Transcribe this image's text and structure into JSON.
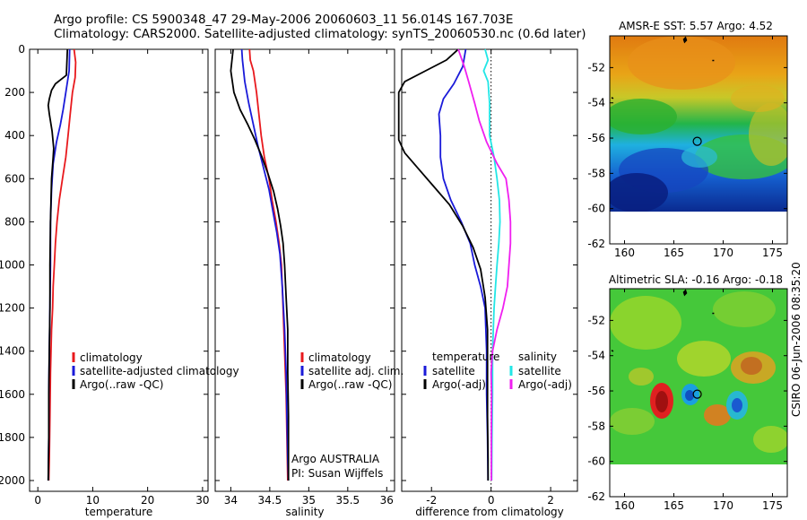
{
  "header": {
    "line1": "Argo profile: CS 5900348_47 29-May-2006 20060603_11 56.014S 167.703E",
    "line2": "Climatology: CARS2000. Satellite-adjusted climatology: synTS_20060530.nc (0.6d later)"
  },
  "footer_stamp": "CSIRO 06-Jun-2006 08:35:20",
  "colors": {
    "red": "#e8191d",
    "blue": "#1a1ad9",
    "black": "#000000",
    "cyan": "#22e6e6",
    "magenta": "#f01ff0",
    "grey": "#b4b4b4"
  },
  "chart_data": [
    {
      "type": "line",
      "xlabel": "temperature",
      "ylim": [
        2050,
        0
      ],
      "xlim": [
        -1.5,
        31
      ],
      "xticks": [
        "0",
        "10",
        "20",
        "30"
      ],
      "yticks": [
        "0",
        "200",
        "400",
        "600",
        "800",
        "1000",
        "1200",
        "1400",
        "1600",
        "1800",
        "2000"
      ],
      "legend": {
        "placement": "lower-right",
        "entries": [
          "climatology",
          "satellite-adjusted climatology",
          "Argo(..raw -QC)"
        ]
      },
      "series": [
        {
          "name": "climatology",
          "color": "red",
          "points": [
            [
              6.6,
              0
            ],
            [
              6.9,
              60
            ],
            [
              6.8,
              130
            ],
            [
              6.3,
              200
            ],
            [
              5.9,
              300
            ],
            [
              5.5,
              400
            ],
            [
              5.1,
              500
            ],
            [
              4.5,
              600
            ],
            [
              3.9,
              700
            ],
            [
              3.5,
              800
            ],
            [
              3.2,
              900
            ],
            [
              3.0,
              1000
            ],
            [
              2.8,
              1100
            ],
            [
              2.7,
              1200
            ],
            [
              2.5,
              1300
            ],
            [
              2.4,
              1400
            ],
            [
              2.3,
              1500
            ],
            [
              2.2,
              1700
            ],
            [
              2.1,
              1900
            ],
            [
              2.0,
              2000
            ]
          ]
        },
        {
          "name": "satellite-adjusted climatology",
          "color": "blue",
          "points": [
            [
              5.8,
              0
            ],
            [
              5.7,
              100
            ],
            [
              5.1,
              200
            ],
            [
              4.6,
              280
            ],
            [
              4.1,
              350
            ],
            [
              3.4,
              430
            ],
            [
              2.8,
              530
            ],
            [
              2.5,
              650
            ],
            [
              2.3,
              800
            ],
            [
              2.3,
              1000
            ],
            [
              2.2,
              1200
            ],
            [
              2.1,
              1400
            ],
            [
              2.0,
              1600
            ],
            [
              2.0,
              1800
            ],
            [
              1.9,
              2000
            ]
          ]
        },
        {
          "name": "Argo(..raw -QC)",
          "color": "black",
          "points": [
            [
              5.4,
              0
            ],
            [
              5.3,
              60
            ],
            [
              5.2,
              120
            ],
            [
              4.2,
              140
            ],
            [
              3.2,
              160
            ],
            [
              2.5,
              190
            ],
            [
              2.1,
              230
            ],
            [
              1.9,
              260
            ],
            [
              2.1,
              300
            ],
            [
              2.6,
              380
            ],
            [
              2.9,
              460
            ],
            [
              2.8,
              500
            ],
            [
              2.5,
              600
            ],
            [
              2.4,
              700
            ],
            [
              2.3,
              800
            ],
            [
              2.2,
              1000
            ],
            [
              2.2,
              1200
            ],
            [
              2.1,
              1400
            ],
            [
              2.0,
              1600
            ],
            [
              2.0,
              1800
            ],
            [
              1.9,
              2000
            ]
          ]
        }
      ]
    },
    {
      "type": "line",
      "xlabel": "salinity",
      "ylim": [
        2050,
        0
      ],
      "xlim": [
        33.8,
        36.1
      ],
      "xticks": [
        "34",
        "34.5",
        "35",
        "35.5",
        "36"
      ],
      "legend": {
        "placement": "lower-right",
        "entries": [
          "climatology",
          "satellite adj. clim.",
          "Argo(..raw -QC)"
        ]
      },
      "annotations": [
        "Argo AUSTRALIA",
        "PI: Susan Wijffels"
      ],
      "series": [
        {
          "name": "climatology",
          "color": "red",
          "points": [
            [
              34.24,
              0
            ],
            [
              34.25,
              50
            ],
            [
              34.29,
              100
            ],
            [
              34.33,
              200
            ],
            [
              34.36,
              300
            ],
            [
              34.39,
              400
            ],
            [
              34.43,
              500
            ],
            [
              34.49,
              600
            ],
            [
              34.53,
              700
            ],
            [
              34.58,
              800
            ],
            [
              34.62,
              900
            ],
            [
              34.65,
              1000
            ],
            [
              34.67,
              1200
            ],
            [
              34.69,
              1400
            ],
            [
              34.71,
              1600
            ],
            [
              34.72,
              1800
            ],
            [
              34.73,
              2000
            ]
          ]
        },
        {
          "name": "satellite adj. clim.",
          "color": "blue",
          "points": [
            [
              34.14,
              0
            ],
            [
              34.15,
              50
            ],
            [
              34.18,
              150
            ],
            [
              34.23,
              250
            ],
            [
              34.29,
              350
            ],
            [
              34.35,
              450
            ],
            [
              34.42,
              550
            ],
            [
              34.49,
              650
            ],
            [
              34.54,
              750
            ],
            [
              34.59,
              850
            ],
            [
              34.63,
              950
            ],
            [
              34.66,
              1100
            ],
            [
              34.69,
              1300
            ],
            [
              34.71,
              1500
            ],
            [
              34.72,
              1700
            ],
            [
              34.73,
              1900
            ],
            [
              34.74,
              2000
            ]
          ]
        },
        {
          "name": "Argo(..raw -QC)",
          "color": "black",
          "points": [
            [
              34.03,
              0
            ],
            [
              34.0,
              100
            ],
            [
              34.04,
              200
            ],
            [
              34.12,
              280
            ],
            [
              34.22,
              350
            ],
            [
              34.31,
              420
            ],
            [
              34.4,
              500
            ],
            [
              34.48,
              580
            ],
            [
              34.55,
              660
            ],
            [
              34.6,
              740
            ],
            [
              34.64,
              820
            ],
            [
              34.67,
              900
            ],
            [
              34.69,
              1000
            ],
            [
              34.71,
              1150
            ],
            [
              34.73,
              1300
            ],
            [
              34.73,
              1500
            ],
            [
              34.74,
              1700
            ],
            [
              34.74,
              1900
            ],
            [
              34.74,
              2000
            ]
          ]
        }
      ]
    },
    {
      "type": "line",
      "xlabel": "difference from climatology",
      "ylim": [
        2050,
        0
      ],
      "xlim": [
        -3,
        2.9
      ],
      "xticks": [
        "-2",
        "0",
        "2"
      ],
      "zero_line": "dotted",
      "legend": {
        "placement": "lower",
        "groups": [
          {
            "title": "temperature",
            "entries": [
              "satellite",
              "Argo(-adj)"
            ]
          },
          {
            "title": "salinity",
            "entries": [
              "satellite",
              "Argo(-adj)"
            ]
          }
        ]
      },
      "series": [
        {
          "group": "temperature",
          "name": "satellite",
          "color": "blue",
          "points": [
            [
              -0.85,
              0
            ],
            [
              -0.95,
              80
            ],
            [
              -1.25,
              160
            ],
            [
              -1.6,
              230
            ],
            [
              -1.75,
              300
            ],
            [
              -1.7,
              400
            ],
            [
              -1.7,
              500
            ],
            [
              -1.6,
              600
            ],
            [
              -1.35,
              700
            ],
            [
              -1.0,
              800
            ],
            [
              -0.7,
              900
            ],
            [
              -0.55,
              1000
            ],
            [
              -0.35,
              1100
            ],
            [
              -0.2,
              1200
            ],
            [
              -0.15,
              1400
            ],
            [
              -0.15,
              1600
            ],
            [
              -0.12,
              1800
            ],
            [
              -0.1,
              2000
            ]
          ]
        },
        {
          "group": "temperature",
          "name": "Argo(-adj)",
          "color": "black",
          "points": [
            [
              -1.1,
              0
            ],
            [
              -1.5,
              50
            ],
            [
              -2.2,
              100
            ],
            [
              -2.9,
              150
            ],
            [
              -3.1,
              200
            ],
            [
              -3.1,
              420
            ],
            [
              -2.9,
              480
            ],
            [
              -2.4,
              560
            ],
            [
              -1.9,
              640
            ],
            [
              -1.4,
              720
            ],
            [
              -0.95,
              820
            ],
            [
              -0.6,
              920
            ],
            [
              -0.35,
              1020
            ],
            [
              -0.2,
              1150
            ],
            [
              -0.12,
              1300
            ],
            [
              -0.12,
              1500
            ],
            [
              -0.12,
              1700
            ],
            [
              -0.1,
              1900
            ],
            [
              -0.1,
              2000
            ]
          ]
        },
        {
          "group": "salinity",
          "name": "satellite",
          "color": "cyan",
          "points": [
            [
              -0.2,
              0
            ],
            [
              -0.1,
              50
            ],
            [
              -0.25,
              100
            ],
            [
              -0.1,
              150
            ],
            [
              -0.05,
              250
            ],
            [
              -0.05,
              400
            ],
            [
              0.1,
              500
            ],
            [
              0.2,
              600
            ],
            [
              0.28,
              700
            ],
            [
              0.3,
              800
            ],
            [
              0.26,
              900
            ],
            [
              0.2,
              1000
            ],
            [
              0.15,
              1100
            ],
            [
              0.1,
              1200
            ],
            [
              0.05,
              1400
            ],
            [
              0.05,
              1600
            ],
            [
              0.03,
              1800
            ],
            [
              0.02,
              2000
            ]
          ]
        },
        {
          "group": "salinity",
          "name": "Argo(-adj)",
          "color": "magenta",
          "points": [
            [
              -1.1,
              0
            ],
            [
              -1.0,
              40
            ],
            [
              -0.9,
              80
            ],
            [
              -0.75,
              150
            ],
            [
              -0.55,
              250
            ],
            [
              -0.4,
              330
            ],
            [
              -0.15,
              430
            ],
            [
              0.2,
              530
            ],
            [
              0.5,
              600
            ],
            [
              0.6,
              700
            ],
            [
              0.65,
              800
            ],
            [
              0.65,
              900
            ],
            [
              0.6,
              1000
            ],
            [
              0.55,
              1100
            ],
            [
              0.4,
              1200
            ],
            [
              0.2,
              1300
            ],
            [
              0.05,
              1400
            ],
            [
              0.0,
              1500
            ],
            [
              0.02,
              1600
            ],
            [
              0.01,
              1800
            ],
            [
              0.01,
              2000
            ]
          ]
        }
      ]
    },
    {
      "type": "heatmap",
      "title": "AMSR-E SST: 5.57 Argo: 4.52",
      "xlim": [
        158.5,
        176.5
      ],
      "ylim": [
        -62,
        -50.2
      ],
      "xticks": [
        "160",
        "165",
        "170",
        "175"
      ],
      "yticks": [
        "-52",
        "-54",
        "-56",
        "-58",
        "-60",
        "-62"
      ],
      "data_lat_range": [
        -60,
        -50.2
      ],
      "marker": [
        167.7,
        -56.0
      ]
    },
    {
      "type": "heatmap",
      "title": "Altimetric SLA: -0.16 Argo: -0.18",
      "xlim": [
        158.5,
        176.5
      ],
      "ylim": [
        -62,
        -50.2
      ],
      "xticks": [
        "160",
        "165",
        "170",
        "175"
      ],
      "yticks": [
        "-52",
        "-54",
        "-56",
        "-58",
        "-60",
        "-62"
      ],
      "data_lat_range": [
        -60,
        -50.2
      ],
      "marker": [
        167.7,
        -56.0
      ]
    }
  ]
}
